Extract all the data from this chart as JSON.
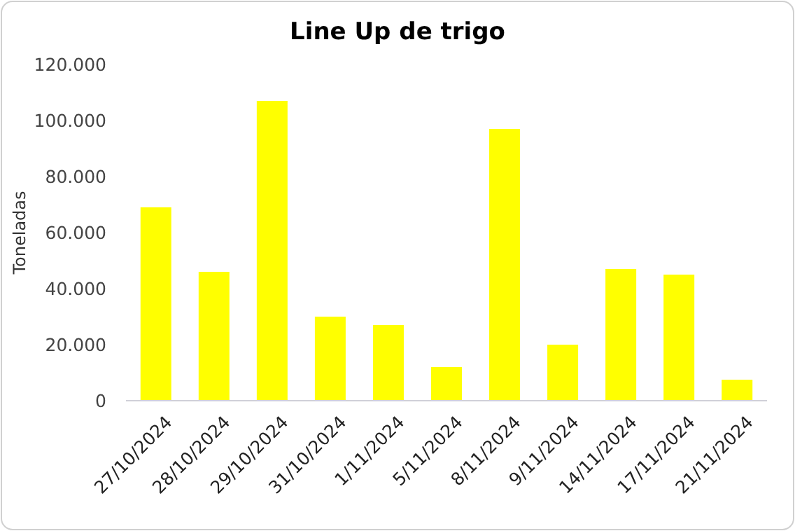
{
  "chart_data": {
    "type": "bar",
    "title": "Line Up de trigo",
    "ylabel": "Toneladas",
    "categories": [
      "27/10/2024",
      "28/10/2024",
      "29/10/2024",
      "31/10/2024",
      "1/11/2024",
      "5/11/2024",
      "8/11/2024",
      "9/11/2024",
      "14/11/2024",
      "17/11/2024",
      "21/11/2024"
    ],
    "values": [
      69000,
      46000,
      107000,
      30000,
      27000,
      12000,
      97000,
      20000,
      47000,
      45000,
      7500
    ],
    "color": "#ffff00",
    "ylim": [
      0,
      120000
    ],
    "yticks": [
      {
        "value": 0,
        "label": "0"
      },
      {
        "value": 20000,
        "label": "20.000"
      },
      {
        "value": 40000,
        "label": "40.000"
      },
      {
        "value": 60000,
        "label": "60.000"
      },
      {
        "value": 80000,
        "label": "80.000"
      },
      {
        "value": 100000,
        "label": "100.000"
      },
      {
        "value": 120000,
        "label": "120.000"
      }
    ],
    "grid": false
  }
}
